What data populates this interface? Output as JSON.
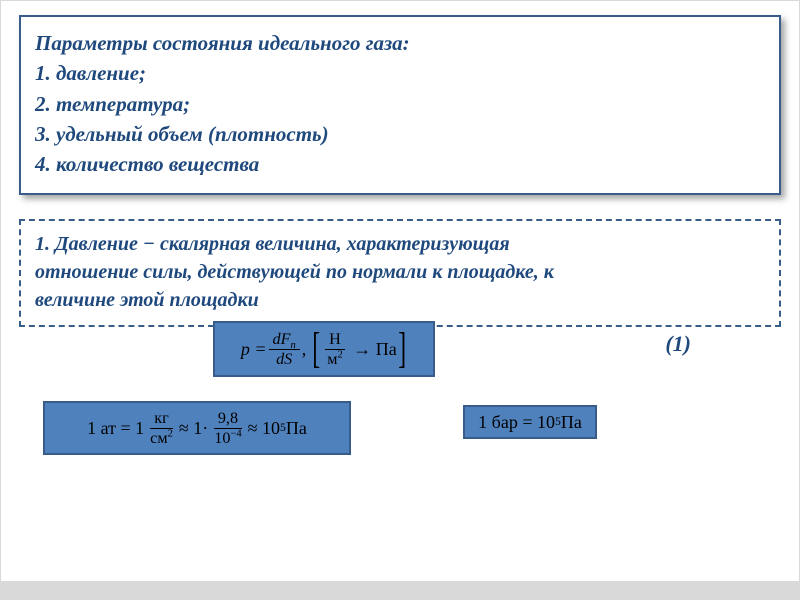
{
  "colors": {
    "heading_text": "#1f497d",
    "box_border": "#385d8a",
    "formula_bg": "#4f81bd",
    "page_bg": "#ffffff",
    "footer_bg": "#d9d9d9"
  },
  "title": {
    "heading": "Параметры состояния идеального газа:",
    "items": [
      "1. давление;",
      "2. температура;",
      "3. удельный объем (плотность)",
      "4. количество вещества"
    ]
  },
  "definition": {
    "line1": "1. Давление − скалярная величина, характеризующая",
    "line2": "отношение силы, действующей по нормали к площадке, к",
    "line3": "величине этой площадки"
  },
  "equation_number": "(1)",
  "formula_main": {
    "p_eq": "p =",
    "num": "dF",
    "num_sub": "n",
    "den": "dS",
    "comma": ",",
    "unit_num": "Н",
    "unit_den_base": "м",
    "unit_den_sup": "2",
    "arrow": "→",
    "unit_result": "Па"
  },
  "formula_at": {
    "lead": "1 ат = 1",
    "frac1_num": "кг",
    "frac1_den_base": "см",
    "frac1_den_sup": "2",
    "approx1": "≈ 1·",
    "frac2_num": "9,8",
    "frac2_den_base": "10",
    "frac2_den_sup": "−4",
    "approx2": "≈ 10",
    "exp": "5",
    "tail": " Па"
  },
  "formula_bar": {
    "lead": "1 бар = 10",
    "exp": "5",
    "tail": "  Па"
  }
}
